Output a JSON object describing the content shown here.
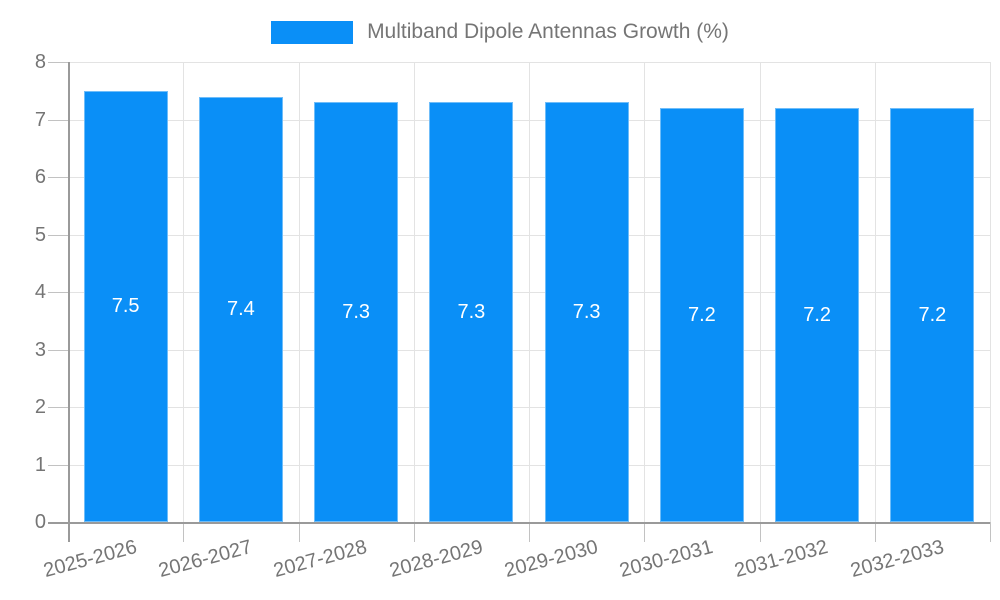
{
  "legend": {
    "label": "Multiband Dipole Antennas Growth (%)"
  },
  "chart_data": {
    "type": "bar",
    "title": "",
    "xlabel": "",
    "ylabel": "",
    "series_name": "Multiband Dipole Antennas Growth (%)",
    "categories": [
      "2025-2026",
      "2026-2027",
      "2027-2028",
      "2028-2029",
      "2029-2030",
      "2030-2031",
      "2031-2032",
      "2032-2033"
    ],
    "values": [
      7.5,
      7.4,
      7.3,
      7.3,
      7.3,
      7.2,
      7.2,
      7.2
    ],
    "value_labels": [
      "7.5",
      "7.4",
      "7.3",
      "7.3",
      "7.3",
      "7.2",
      "7.2",
      "7.2"
    ],
    "ylim": [
      0,
      8
    ],
    "yticks": [
      0,
      1,
      2,
      3,
      4,
      5,
      6,
      7,
      8
    ],
    "grid": true,
    "legend_position": "top-center",
    "x_label_rotation_deg": -15
  },
  "colors": {
    "bar": "#0a8ff7",
    "bar_edge": "#6fbdf9",
    "value_label": "#ffffff",
    "grid": "#e3e3e3",
    "axis": "#9a9a9a",
    "tick": "#c2c2c2",
    "text": "#757575",
    "background": "#ffffff"
  }
}
